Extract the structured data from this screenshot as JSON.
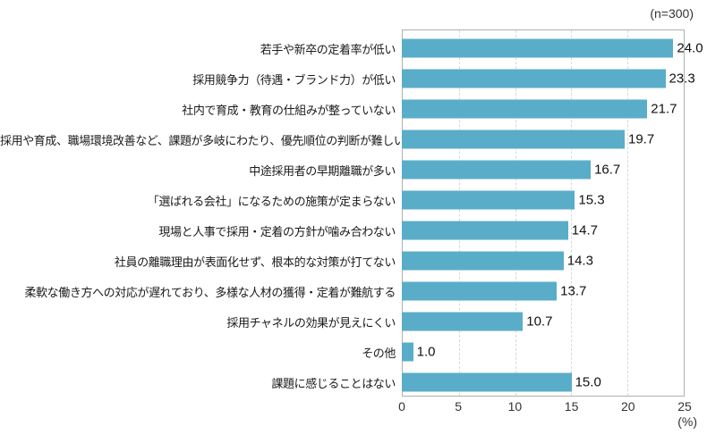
{
  "header": {
    "sample_size_label": "(n=300)"
  },
  "colors": {
    "bar": "#5aadc9",
    "frame_border": "#b0b0b0",
    "gridline": "#d8d8d8",
    "category_text": "#1a1a1a",
    "value_text": "#111111",
    "tick_text": "#333333"
  },
  "chart_data": {
    "type": "bar",
    "orientation": "horizontal",
    "title": "",
    "n_label": "(n=300)",
    "categories": [
      "若手や新卒の定着率が低い",
      "採用競争力（待遇・ブランド力）が低い",
      "社内で育成・教育の仕組みが整っていない",
      "採用や育成、職場環境改善など、課題が多岐にわたり、優先順位の判断が難しい",
      "中途採用者の早期離職が多い",
      "「選ばれる会社」になるための施策が定まらない",
      "現場と人事で採用・定着の方針が噛み合わない",
      "社員の離職理由が表面化せず、根本的な対策が打てない",
      "柔軟な働き方への対応が遅れており、多様な人材の獲得・定着が難航する",
      "採用チャネルの効果が見えにくい",
      "その他",
      "課題に感じることはない"
    ],
    "values": [
      24.0,
      23.3,
      21.7,
      19.7,
      16.7,
      15.3,
      14.7,
      14.3,
      13.7,
      10.7,
      1.0,
      15.0
    ],
    "value_labels": [
      "24.0",
      "23.3",
      "21.7",
      "19.7",
      "16.7",
      "15.3",
      "14.7",
      "14.3",
      "13.7",
      "10.7",
      "1.0",
      "15.0"
    ],
    "xlabel": "(%)",
    "xlim": [
      0,
      25
    ],
    "x_ticks": [
      "0",
      "5",
      "10",
      "15",
      "20",
      "25"
    ],
    "gridline_ticks": [
      5,
      10,
      15,
      20
    ],
    "grid": "vertical-dashed",
    "legend": "none"
  }
}
